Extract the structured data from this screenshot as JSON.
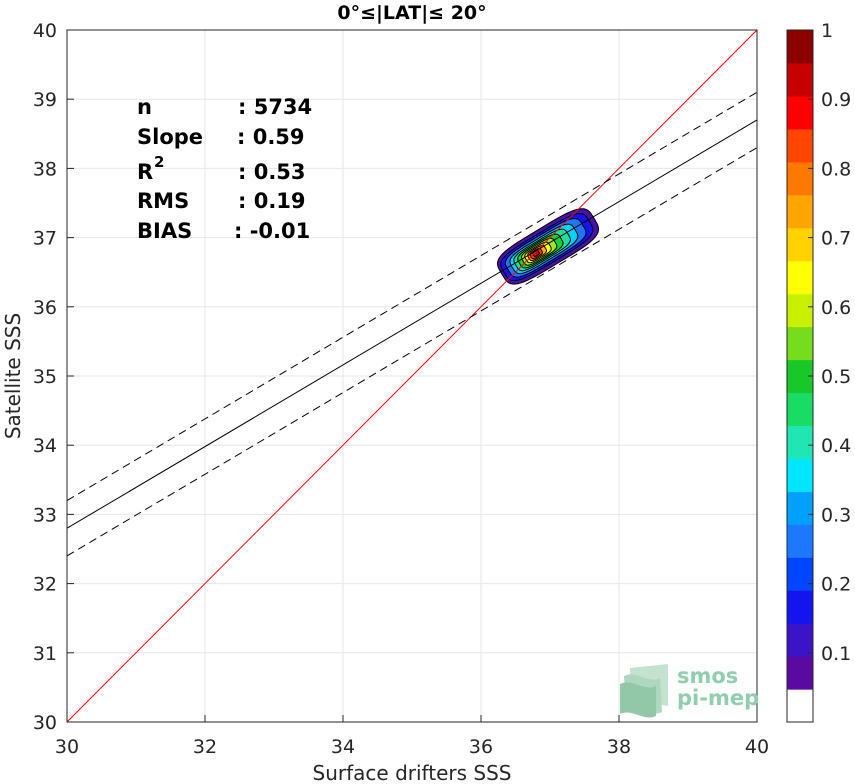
{
  "chart_data": {
    "type": "scatter",
    "title": "0°≤|LAT|≤ 20°",
    "xlabel": "Surface drifters SSS",
    "ylabel": "Satellite SSS",
    "xlim": [
      30,
      40
    ],
    "ylim": [
      30,
      40
    ],
    "x_ticks": [
      "30",
      "32",
      "34",
      "36",
      "38",
      "40"
    ],
    "y_ticks": [
      "30",
      "31",
      "32",
      "33",
      "34",
      "35",
      "36",
      "37",
      "38",
      "39",
      "40"
    ],
    "grid": true,
    "stats": {
      "n_label": "n",
      "n_value": ": 5734",
      "slope_label": "Slope",
      "slope_value": ": 0.59",
      "r2_label": "R",
      "r2_sup": "2",
      "r2_value": ": 0.53",
      "rms_label": "RMS",
      "rms_value": ": 0.19",
      "bias_label": "BIAS",
      "bias_value": ": -0.01"
    },
    "lines": [
      {
        "kind": "identity",
        "color": "#ff0000",
        "style": "solid",
        "x": [
          30,
          40
        ],
        "y": [
          30,
          40
        ]
      },
      {
        "kind": "regression",
        "color": "#000000",
        "style": "solid",
        "x": [
          30,
          40
        ],
        "y": [
          32.8,
          38.7
        ]
      },
      {
        "kind": "regression_upper",
        "color": "#000000",
        "style": "dashed",
        "x": [
          30,
          40
        ],
        "y": [
          33.2,
          39.1
        ]
      },
      {
        "kind": "regression_lower",
        "color": "#000000",
        "style": "dashed",
        "x": [
          30,
          40
        ],
        "y": [
          32.4,
          38.3
        ]
      }
    ],
    "density": {
      "center": [
        36.8,
        36.77
      ],
      "slope": 0.6,
      "levels": [
        {
          "level": 0.05,
          "color": "#4b10a8",
          "half_len": 0.78,
          "half_wid": 0.28,
          "shift": 0.2
        },
        {
          "level": 0.15,
          "color": "#1414f0",
          "half_len": 0.72,
          "half_wid": 0.23,
          "shift": 0.18
        },
        {
          "level": 0.25,
          "color": "#1e78ff",
          "half_len": 0.63,
          "half_wid": 0.2,
          "shift": 0.16
        },
        {
          "level": 0.35,
          "color": "#00d2ff",
          "half_len": 0.53,
          "half_wid": 0.17,
          "shift": 0.13
        },
        {
          "level": 0.45,
          "color": "#20e0a0",
          "half_len": 0.44,
          "half_wid": 0.145,
          "shift": 0.1
        },
        {
          "level": 0.55,
          "color": "#18d230",
          "half_len": 0.35,
          "half_wid": 0.125,
          "shift": 0.07
        },
        {
          "level": 0.6,
          "color": "#a0e628",
          "half_len": 0.27,
          "half_wid": 0.105,
          "shift": 0.05
        },
        {
          "level": 0.65,
          "color": "#ffff00",
          "half_len": 0.2,
          "half_wid": 0.085,
          "shift": 0.03
        },
        {
          "level": 0.75,
          "color": "#ffaa00",
          "half_len": 0.14,
          "half_wid": 0.068,
          "shift": 0.015
        },
        {
          "level": 0.85,
          "color": "#ff3c00",
          "half_len": 0.09,
          "half_wid": 0.05,
          "shift": 0.0
        },
        {
          "level": 0.95,
          "color": "#c80000",
          "half_len": 0.045,
          "half_wid": 0.03,
          "shift": 0.0
        }
      ]
    },
    "colorbar": {
      "range": [
        0,
        1
      ],
      "tick_values": [
        0.1,
        0.2,
        0.3,
        0.4,
        0.5,
        0.6,
        0.7,
        0.8,
        0.9,
        1
      ],
      "tick_labels": [
        "0.1",
        "0.2",
        "0.3",
        "0.4",
        "0.5",
        "0.6",
        "0.7",
        "0.8",
        "0.9",
        "1"
      ],
      "colors": [
        "#ffffff",
        "#5a0aa0",
        "#3c14c8",
        "#1414f0",
        "#0046ff",
        "#1e78ff",
        "#00a0ff",
        "#00e6ff",
        "#20e6b4",
        "#18dc64",
        "#18c828",
        "#78dc1e",
        "#c8f000",
        "#ffff00",
        "#ffd200",
        "#ffa500",
        "#ff7800",
        "#ff4600",
        "#ff0000",
        "#c80000",
        "#8c0000"
      ]
    },
    "logo": {
      "line1": "smos",
      "line2": "pi-mep"
    }
  }
}
